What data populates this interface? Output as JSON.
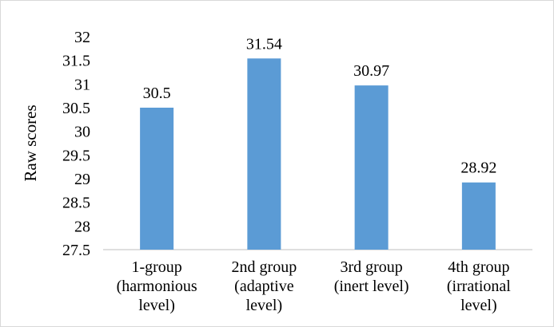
{
  "chart_data": {
    "type": "bar",
    "categories": [
      [
        "1-group",
        "(harmonious",
        "level)"
      ],
      [
        "2nd group",
        "(adaptive",
        "level)"
      ],
      [
        "3rd group",
        "(inert level)"
      ],
      [
        "4th group",
        "(irrational",
        "level)"
      ]
    ],
    "values": [
      30.5,
      31.54,
      30.97,
      28.92
    ],
    "data_labels": [
      "30.5",
      "31.54",
      "30.97",
      "28.92"
    ],
    "ylabel": "Raw scores",
    "ylim": [
      27.5,
      32
    ],
    "yticks": [
      "27.5",
      "28",
      "28.5",
      "29",
      "29.5",
      "30",
      "30.5",
      "31",
      "31.5",
      "32"
    ],
    "grid": false,
    "legend": "none",
    "bar_color": "#5b9bd5",
    "axis_color": "#bfbfbf"
  }
}
